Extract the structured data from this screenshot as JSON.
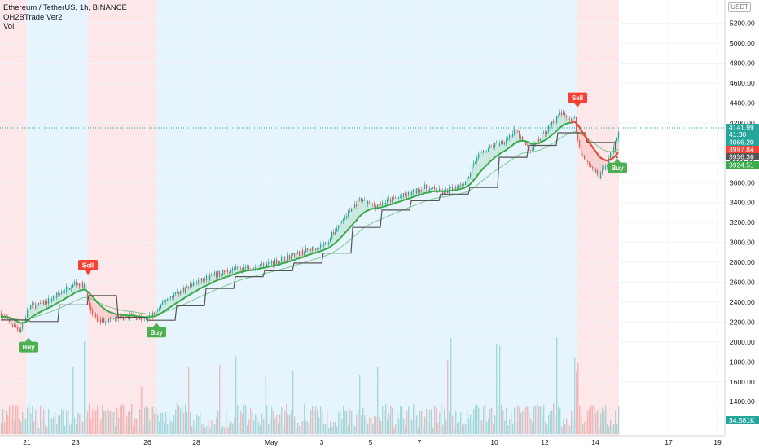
{
  "legend": {
    "title": "Ethereum / TetherUS, 1h, BINANCE",
    "indicator": "OH2BTrade Ver2",
    "volume": "Vol"
  },
  "currency_badge": "USDT",
  "colors": {
    "up": "#26a69a",
    "down": "#ef5350",
    "buy": "#4caf50",
    "sell": "#f44336",
    "bg_buy_zone": "#e6f4fd",
    "bg_sell_zone": "#fde7e9",
    "fast_line": "#3aaa4a",
    "trail_line": "#555555"
  },
  "chart_data": {
    "type": "candlestick",
    "symbol": "ETHUSDT",
    "y_ticks": [
      "5200.00",
      "5000.00",
      "4800.00",
      "4600.00",
      "4400.00",
      "4200.00",
      "4000.00",
      "3800.00",
      "3600.00",
      "3400.00",
      "3200.00",
      "3000.00",
      "2800.00",
      "2600.00",
      "2400.00",
      "2200.00",
      "2000.00",
      "1800.00",
      "1600.00",
      "1400.00"
    ],
    "ylim": [
      1200,
      5300
    ],
    "x_ticks": [
      "21",
      "23",
      "26",
      "28",
      "May",
      "3",
      "5",
      "7",
      "10",
      "12",
      "14",
      "17",
      "19"
    ],
    "signals": [
      {
        "label": "Buy",
        "date": "20 Apr",
        "price": 2100
      },
      {
        "label": "Sell",
        "date": "22 Apr",
        "price": 2620
      },
      {
        "label": "Buy",
        "date": "26 Apr",
        "price": 2250
      },
      {
        "label": "Sell",
        "date": "13 May",
        "price": 4300
      },
      {
        "label": "Buy",
        "date": "15 May",
        "price": 3900
      }
    ],
    "zones": [
      {
        "type": "sell",
        "from": "19 Apr",
        "to": "21 Apr"
      },
      {
        "type": "buy",
        "from": "21 Apr",
        "to": "23 Apr"
      },
      {
        "type": "sell",
        "from": "23 Apr",
        "to": "26 Apr"
      },
      {
        "type": "buy",
        "from": "26 Apr",
        "to": "13 May"
      },
      {
        "type": "sell",
        "from": "13 May",
        "to": "15 May"
      }
    ],
    "price_labels": [
      {
        "value": "4141.99",
        "extra": "41:30",
        "color": "#26a69a"
      },
      {
        "value": "4066.20",
        "color": "#26a69a"
      },
      {
        "value": "3997.84",
        "color": "#f44336"
      },
      {
        "value": "3936.36",
        "color": "#555555"
      },
      {
        "value": "3924.51",
        "color": "#3aaa4a"
      }
    ],
    "volume_label": "34.581K"
  }
}
